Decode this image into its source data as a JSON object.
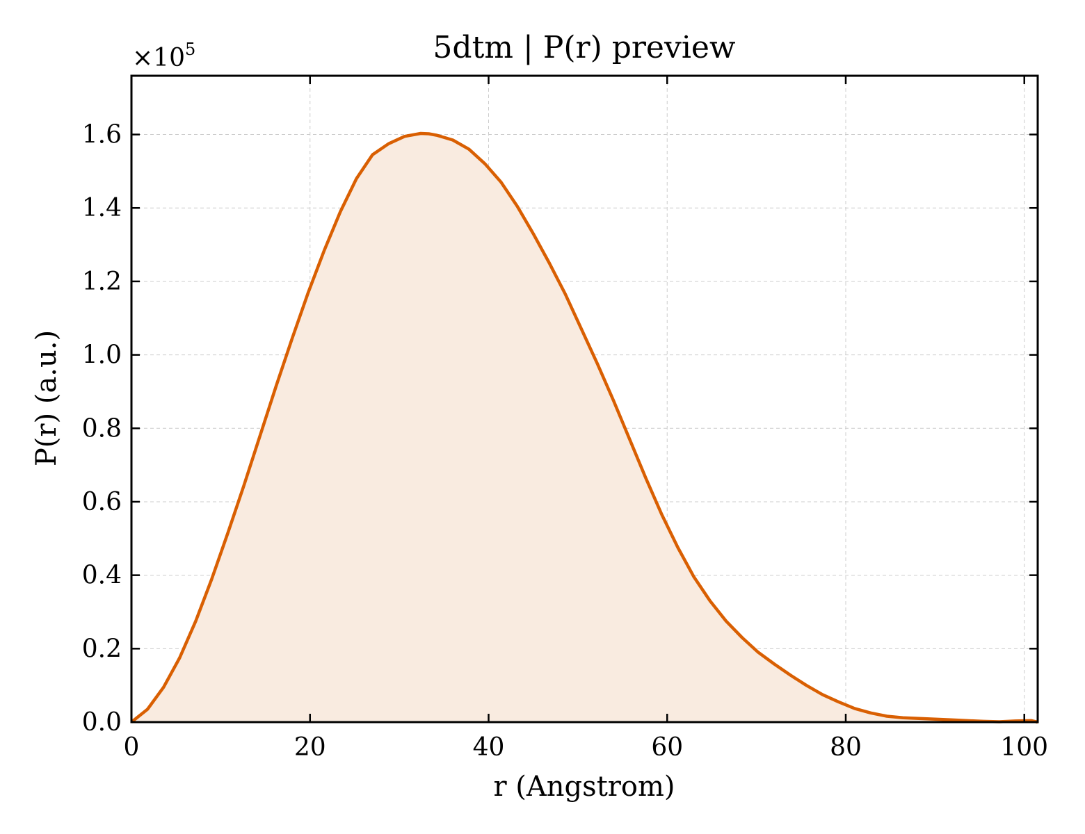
{
  "chart_data": {
    "type": "area",
    "title": "5dtm | P(r) preview",
    "xlabel": "r (Angstrom)",
    "ylabel": "P(r) (a.u.)",
    "y_multiplier_label": "×10",
    "y_multiplier_exponent": "5",
    "xlim": [
      0,
      101.5
    ],
    "ylim": [
      0,
      1.76
    ],
    "x_ticks": [
      0,
      20,
      40,
      60,
      80,
      100
    ],
    "x_tick_labels": [
      "0",
      "20",
      "40",
      "60",
      "80",
      "100"
    ],
    "y_ticks": [
      0,
      0.2,
      0.4,
      0.6,
      0.8,
      1.0,
      1.2,
      1.4,
      1.6
    ],
    "y_tick_labels": [
      "0.0",
      "0.2",
      "0.4",
      "0.6",
      "0.8",
      "1.0",
      "1.2",
      "1.4",
      "1.6"
    ],
    "grid": true,
    "line_color": "#d95f02",
    "fill_color": "#f9ebe0",
    "series": [
      {
        "x": [
          0,
          1.8,
          3.6,
          5.4,
          7.2,
          9.0,
          10.8,
          12.6,
          14.4,
          16.2,
          18.0,
          19.8,
          21.6,
          23.4,
          25.2,
          27.0,
          28.8,
          30.6,
          32.4,
          33.3,
          34.2,
          36.0,
          37.8,
          39.6,
          41.4,
          43.2,
          45.0,
          46.8,
          48.6,
          50.4,
          52.2,
          54.0,
          55.8,
          57.6,
          59.4,
          61.2,
          63.0,
          64.8,
          66.6,
          68.4,
          70.2,
          72.0,
          73.8,
          75.6,
          77.4,
          79.2,
          81.0,
          82.8,
          84.6,
          86.4,
          88.2,
          90.0,
          91.8,
          93.6,
          95.4,
          97.2,
          99.0,
          100.8,
          101.5
        ],
        "y": [
          0.0,
          0.035,
          0.095,
          0.175,
          0.275,
          0.39,
          0.515,
          0.645,
          0.78,
          0.915,
          1.045,
          1.17,
          1.285,
          1.39,
          1.48,
          1.545,
          1.575,
          1.595,
          1.603,
          1.602,
          1.598,
          1.585,
          1.56,
          1.52,
          1.47,
          1.405,
          1.33,
          1.25,
          1.165,
          1.07,
          0.975,
          0.875,
          0.77,
          0.665,
          0.565,
          0.475,
          0.395,
          0.33,
          0.275,
          0.23,
          0.19,
          0.158,
          0.128,
          0.1,
          0.075,
          0.055,
          0.037,
          0.025,
          0.016,
          0.012,
          0.01,
          0.008,
          0.006,
          0.004,
          0.002,
          0.001,
          0.003,
          0.004,
          0.0
        ]
      }
    ]
  }
}
